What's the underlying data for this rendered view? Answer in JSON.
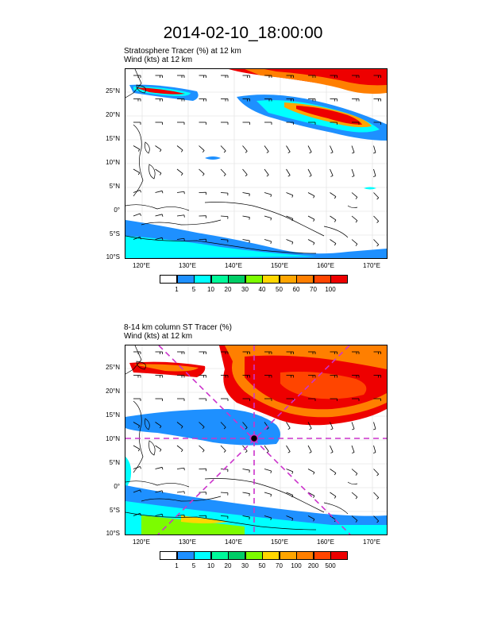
{
  "title": "2014-02-10_18:00:00",
  "panels": [
    {
      "id": "top",
      "subtitle_line1": "Stratosphere Tracer   (%)    at   12 km",
      "subtitle_line2": "Wind   (kts)     at  12 km",
      "lat_labels": [
        "25°N",
        "20°N",
        "15°N",
        "10°N",
        "5°N",
        "0°",
        "5°S",
        "10°S"
      ],
      "lon_labels": [
        "120°E",
        "130°E",
        "140°E",
        "150°E",
        "160°E",
        "170°E"
      ],
      "colorbar_labels": [
        "1",
        "5",
        "10",
        "20",
        "30",
        "40",
        "50",
        "60",
        "70",
        "100"
      ],
      "colorbar_colors": [
        "#ffffff",
        "#1e90ff",
        "#00ffff",
        "#00fa9a",
        "#00cd66",
        "#7cfc00",
        "#ffd700",
        "#ffa500",
        "#ff7f00",
        "#ff4500",
        "#ee0000"
      ],
      "center_marker": false
    },
    {
      "id": "bottom",
      "subtitle_line1": "8-14 km column ST Tracer   (%)",
      "subtitle_line2": "Wind   (kts)     at   12 km",
      "lat_labels": [
        "25°N",
        "20°N",
        "15°N",
        "10°N",
        "5°N",
        "0°",
        "5°S",
        "10°S"
      ],
      "lon_labels": [
        "120°E",
        "130°E",
        "140°E",
        "150°E",
        "160°E",
        "170°E"
      ],
      "colorbar_labels": [
        "1",
        "5",
        "10",
        "20",
        "30",
        "50",
        "70",
        "100",
        "200",
        "500"
      ],
      "colorbar_colors": [
        "#ffffff",
        "#1e90ff",
        "#00ffff",
        "#00fa9a",
        "#00cd66",
        "#7cfc00",
        "#ffd700",
        "#ffa500",
        "#ff7f00",
        "#ff4500",
        "#ee0000"
      ],
      "center_marker": true,
      "marker_color": "#cc33cc"
    }
  ]
}
